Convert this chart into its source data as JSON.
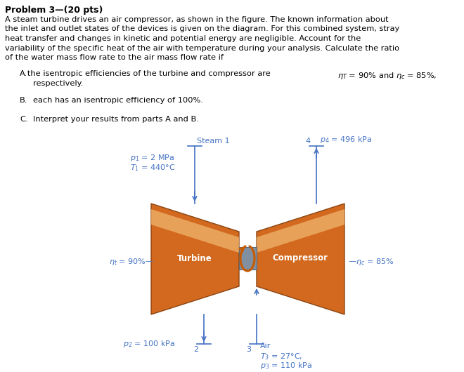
{
  "bg_color": "#ffffff",
  "text_color": "#000000",
  "blue_color": "#4472C4",
  "turbine_main": "#D2691E",
  "turbine_edge": "#8B4513",
  "turbine_highlight": "#F5C07A",
  "shaft_color": "#8090A0",
  "shaft_edge": "#5A6A7A",
  "orange_arrow": "#C85A00",
  "body_lines": [
    "A steam turbine drives an air compressor, as shown in the figure. The known information about",
    "the inlet and outlet states of the devices is given on the diagram. For this combined system, stray",
    "heat transfer and changes in kinetic and potential energy are negligible. Account for the",
    "variability of the specific heat of the air with temperature during your analysis. Calculate the ratio",
    "of the water mass flow rate to the air mass flow rate if"
  ],
  "title": "Problem 3—(20 pts)",
  "itemA_prefix": "A. ",
  "itemA_line1": "the isentropic efficiencies of the turbine and compressor are η",
  "itemA_T": "T",
  "itemA_mid": " = 90% and η",
  "itemA_c": "c",
  "itemA_end": " = 85%,",
  "itemA_line2": "respectively.",
  "itemB": "B. each has an isentropic efficiency of 100%.",
  "itemC": "C. Interpret your results from parts A and B."
}
